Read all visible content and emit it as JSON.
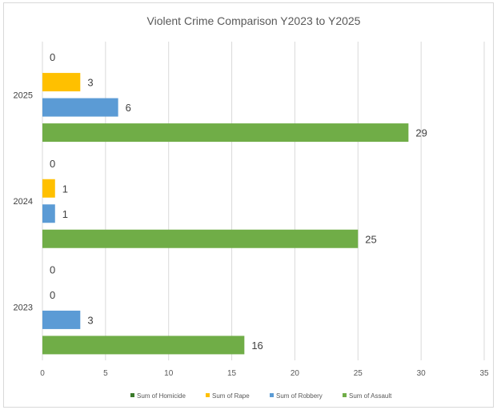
{
  "chart_data": {
    "type": "bar",
    "orientation": "horizontal",
    "title": "Violent Crime Comparison Y2023 to Y2025",
    "xlabel": "",
    "ylabel": "",
    "categories": [
      "2023",
      "2024",
      "2025"
    ],
    "xlim": [
      0,
      35
    ],
    "xticks": [
      "0",
      "5",
      "10",
      "15",
      "20",
      "25",
      "30",
      "35"
    ],
    "grid": true,
    "legend_position": "bottom",
    "series": [
      {
        "name": "Sum of Homicide",
        "values": [
          0,
          0,
          0
        ],
        "color": "#3a7a2a"
      },
      {
        "name": "Sum of Rape",
        "values": [
          0,
          1,
          3
        ],
        "color": "#ffc000"
      },
      {
        "name": "Sum of Robbery",
        "values": [
          3,
          1,
          6
        ],
        "color": "#5b9bd5"
      },
      {
        "name": "Sum of Assault",
        "values": [
          16,
          25,
          29
        ],
        "color": "#70ad47"
      }
    ]
  }
}
